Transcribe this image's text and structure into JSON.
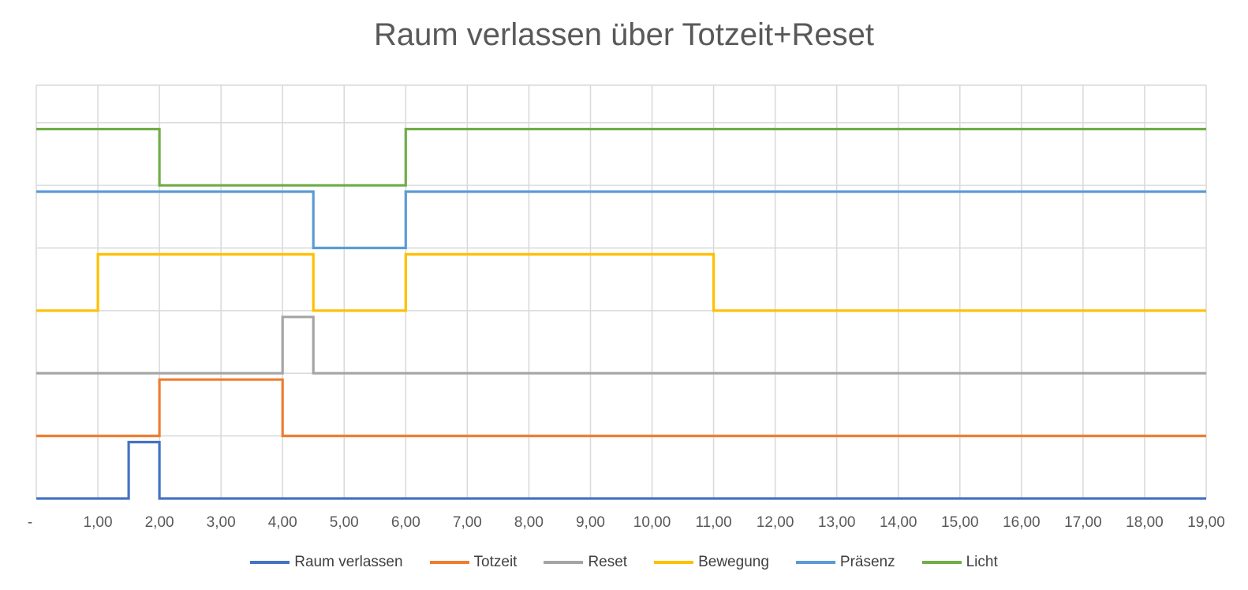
{
  "chart_data": {
    "type": "line",
    "title": "Raum verlassen über Totzeit+Reset",
    "x_tick_labels": [
      "-",
      "1,00",
      "2,00",
      "3,00",
      "4,00",
      "5,00",
      "6,00",
      "7,00",
      "8,00",
      "9,00",
      "10,00",
      "11,00",
      "12,00",
      "13,00",
      "14,00",
      "15,00",
      "16,00",
      "17,00",
      "18,00",
      "19,00"
    ],
    "xlim": [
      0,
      19
    ],
    "ylim": [
      0,
      6.6
    ],
    "grid": true,
    "legend_position": "bottom",
    "step": true,
    "series": [
      {
        "name": "Raum verlassen",
        "color": "#4472C4",
        "x": [
          0,
          1.5,
          1.5,
          2,
          2,
          19
        ],
        "y": [
          0,
          0,
          0.9,
          0.9,
          0,
          0
        ]
      },
      {
        "name": "Totzeit",
        "color": "#ED7D31",
        "x": [
          0,
          2,
          2,
          4,
          4,
          19
        ],
        "y": [
          1,
          1,
          1.9,
          1.9,
          1,
          1
        ]
      },
      {
        "name": "Reset",
        "color": "#A5A5A5",
        "x": [
          0,
          4,
          4,
          4.5,
          4.5,
          19
        ],
        "y": [
          2,
          2,
          2.9,
          2.9,
          2,
          2
        ]
      },
      {
        "name": "Bewegung",
        "color": "#FFC000",
        "x": [
          0,
          1,
          1,
          4.5,
          4.5,
          6,
          6,
          11,
          11,
          19
        ],
        "y": [
          3,
          3,
          3.9,
          3.9,
          3,
          3,
          3.9,
          3.9,
          3,
          3
        ]
      },
      {
        "name": "Präsenz",
        "color": "#5B9BD5",
        "x": [
          0,
          4.5,
          4.5,
          6,
          6,
          19
        ],
        "y": [
          4.9,
          4.9,
          4,
          4,
          4.9,
          4.9
        ]
      },
      {
        "name": "Licht",
        "color": "#70AD47",
        "x": [
          0,
          2,
          2,
          6,
          6,
          19
        ],
        "y": [
          5.9,
          5.9,
          5,
          5,
          5.9,
          5.9
        ]
      }
    ]
  }
}
